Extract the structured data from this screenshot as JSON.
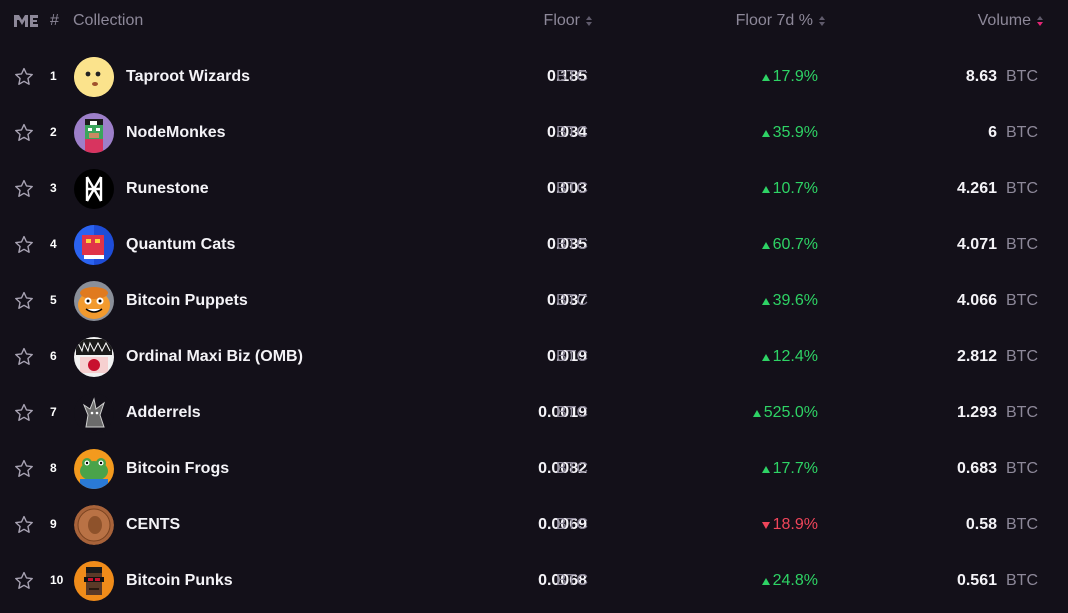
{
  "header": {
    "rank": "#",
    "collection": "Collection",
    "floor": "Floor",
    "floor_7d": "Floor 7d %",
    "volume": "Volume"
  },
  "colors": {
    "up": "#2ed365",
    "down": "#f0455a",
    "active_sort": "#e42575",
    "background": "#131019"
  },
  "rows": [
    {
      "rank": "1",
      "name": "Taproot Wizards",
      "floor": "0.185",
      "currency": "BTC",
      "change": "17.9%",
      "direction": "up",
      "volume": "8.63",
      "avatar_icon": "wizard-face-icon"
    },
    {
      "rank": "2",
      "name": "NodeMonkes",
      "floor": "0.034",
      "currency": "BTC",
      "change": "35.9%",
      "direction": "up",
      "volume": "6",
      "avatar_icon": "pixel-monkey-icon"
    },
    {
      "rank": "3",
      "name": "Runestone",
      "floor": "0.003",
      "currency": "BTC",
      "change": "10.7%",
      "direction": "up",
      "volume": "4.261",
      "avatar_icon": "rune-glyph-icon"
    },
    {
      "rank": "4",
      "name": "Quantum Cats",
      "floor": "0.035",
      "currency": "BTC",
      "change": "60.7%",
      "direction": "up",
      "volume": "4.071",
      "avatar_icon": "pixel-cat-icon"
    },
    {
      "rank": "5",
      "name": "Bitcoin Puppets",
      "floor": "0.037",
      "currency": "BTC",
      "change": "39.6%",
      "direction": "up",
      "volume": "4.066",
      "avatar_icon": "puppet-face-icon"
    },
    {
      "rank": "6",
      "name": "Ordinal Maxi Biz (OMB)",
      "floor": "0.019",
      "currency": "BTC",
      "change": "12.4%",
      "direction": "up",
      "volume": "2.812",
      "avatar_icon": "omb-artwork-icon"
    },
    {
      "rank": "7",
      "name": "Adderrels",
      "floor": "0.0019",
      "currency": "BTC",
      "change": "525.0%",
      "direction": "up",
      "volume": "1.293",
      "avatar_icon": "squirrel-sketch-icon"
    },
    {
      "rank": "8",
      "name": "Bitcoin Frogs",
      "floor": "0.0082",
      "currency": "BTC",
      "change": "17.7%",
      "direction": "up",
      "volume": "0.683",
      "avatar_icon": "frog-face-icon"
    },
    {
      "rank": "9",
      "name": "CENTS",
      "floor": "0.0069",
      "currency": "BTC",
      "change": "18.9%",
      "direction": "down",
      "volume": "0.58",
      "avatar_icon": "penny-coin-icon"
    },
    {
      "rank": "10",
      "name": "Bitcoin Punks",
      "floor": "0.0068",
      "currency": "BTC",
      "change": "24.8%",
      "direction": "up",
      "volume": "0.561",
      "avatar_icon": "punk-face-icon"
    }
  ]
}
